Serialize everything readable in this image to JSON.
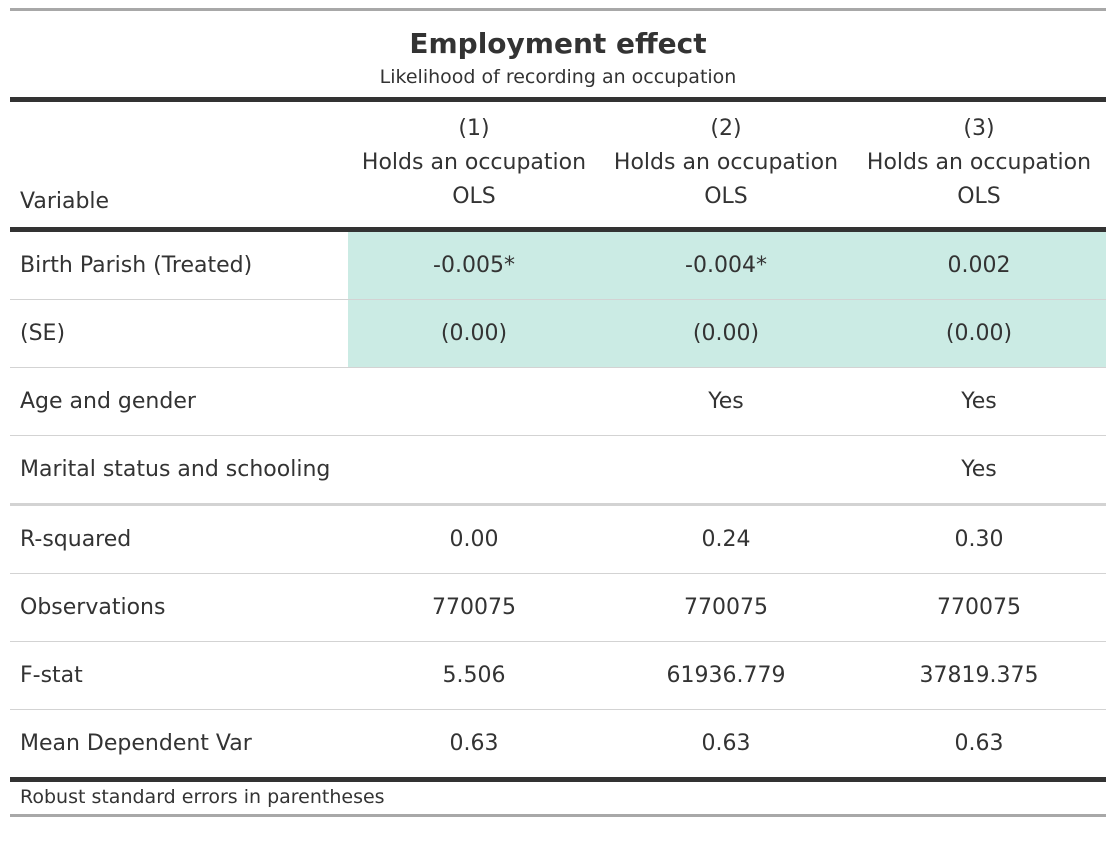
{
  "table": {
    "title": "Employment effect",
    "subtitle": "Likelihood of recording an occupation",
    "header": {
      "variable_label": "Variable",
      "columns": [
        {
          "number": "(1)",
          "dependent": "Holds an occupation",
          "method": "OLS"
        },
        {
          "number": "(2)",
          "dependent": "Holds an occupation",
          "method": "OLS"
        },
        {
          "number": "(3)",
          "dependent": "Holds an occupation",
          "method": "OLS"
        }
      ]
    },
    "rows": [
      {
        "label": "Birth Parish (Treated)",
        "values": [
          "-0.005*",
          "-0.004*",
          "0.002"
        ]
      },
      {
        "label": "(SE)",
        "values": [
          "(0.00)",
          "(0.00)",
          "(0.00)"
        ]
      },
      {
        "label": "Age and gender",
        "values": [
          "",
          "Yes",
          "Yes"
        ]
      },
      {
        "label": "Marital status and schooling",
        "values": [
          "",
          "",
          "Yes"
        ]
      },
      {
        "label": "R-squared",
        "values": [
          "0.00",
          "0.24",
          "0.30"
        ]
      },
      {
        "label": "Observations",
        "values": [
          "770075",
          "770075",
          "770075"
        ]
      },
      {
        "label": "F-stat",
        "values": [
          "5.506",
          "61936.779",
          "37819.375"
        ]
      },
      {
        "label": "Mean Dependent Var",
        "values": [
          "0.63",
          "0.63",
          "0.63"
        ]
      }
    ],
    "highlight_color": "#cbebe4",
    "footnote": "Robust standard errors in parentheses"
  }
}
